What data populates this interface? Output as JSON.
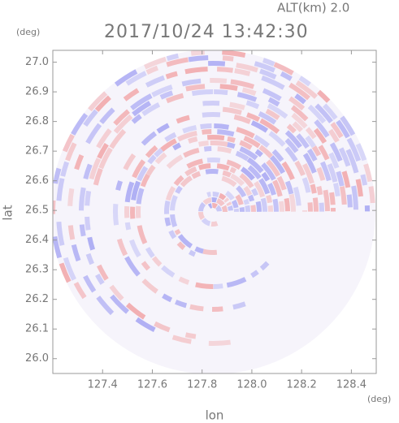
{
  "chart_data": {
    "type": "radar-ppi",
    "title": "2017/10/24 13:42:30",
    "subtitle": "ALT(km) 2.0",
    "xlabel": "lon",
    "ylabel": "lat",
    "xunit": "(deg)",
    "yunit": "(deg)",
    "xlim": [
      127.2,
      128.5
    ],
    "ylim": [
      25.95,
      27.04
    ],
    "xticks": [
      127.4,
      127.6,
      127.8,
      {
        "value": 128,
        "label": "128.0"
      },
      128.2,
      128.4
    ],
    "yticks": [
      {
        "value": 26,
        "label": "26.0"
      },
      26.1,
      26.2,
      26.3,
      26.4,
      26.5,
      26.6,
      26.7,
      26.8,
      26.9,
      {
        "value": 27,
        "label": "27.0"
      }
    ]
  }
}
